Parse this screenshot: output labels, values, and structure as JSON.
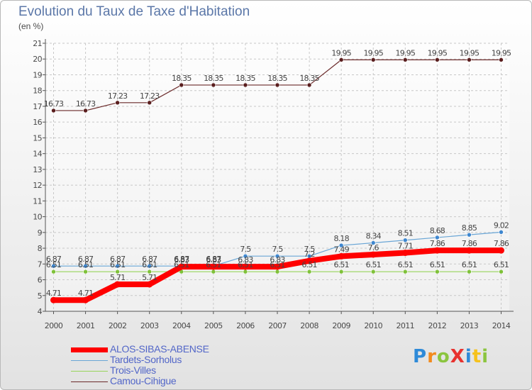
{
  "header": {
    "title": "Evolution du Taux de Taxe d'Habitation",
    "unit": "(en %)"
  },
  "logo": {
    "text": "ProXiti"
  },
  "colors": {
    "background_top": "#ffffff",
    "background_bottom": "#e2e2e2",
    "grid": "#c8c8c8"
  },
  "chart_data": {
    "type": "line",
    "title": "Evolution du Taux de Taxe d'Habitation",
    "subtitle": "(en %)",
    "xlabel": "",
    "ylabel": "",
    "x": [
      "2000",
      "2001",
      "2002",
      "2003",
      "2004",
      "2005",
      "2006",
      "2007",
      "2008",
      "2009",
      "2010",
      "2011",
      "2012",
      "2013",
      "2014"
    ],
    "ylim": [
      4,
      21
    ],
    "yticks": [
      4,
      5,
      6,
      7,
      8,
      9,
      10,
      11,
      12,
      13,
      14,
      15,
      16,
      17,
      18,
      19,
      20,
      21
    ],
    "grid": true,
    "legend_position": "bottom-left",
    "series": [
      {
        "name": "ALOS-SIBAS-ABENSE",
        "color": "#ff0000",
        "values": [
          4.71,
          4.71,
          5.71,
          5.71,
          6.83,
          6.83,
          6.83,
          6.83,
          7.2,
          7.49,
          7.6,
          7.71,
          7.86,
          7.86,
          7.86
        ],
        "labels": [
          "4.71",
          "4.71",
          "5.71",
          "5.71",
          "6.83",
          "6.83",
          "6.83",
          "6.83",
          "7.2",
          "7.49",
          "7.6",
          "7.71",
          "7.86",
          "7.86",
          "7.86"
        ]
      },
      {
        "name": "Tardets-Sorholus",
        "color": "#6aa6d6",
        "values": [
          6.87,
          6.87,
          6.87,
          6.87,
          6.87,
          6.87,
          7.5,
          7.5,
          7.5,
          8.18,
          8.34,
          8.51,
          8.68,
          8.85,
          9.02
        ],
        "labels": [
          "6.87",
          "6.87",
          "6.87",
          "6.87",
          "6.87",
          "6.87",
          "7.5",
          "7.5",
          "7.5",
          "8.18",
          "8.34",
          "8.51",
          "8.68",
          "8.85",
          "9.02"
        ]
      },
      {
        "name": "Trois-Villes",
        "color": "#98d45a",
        "values": [
          6.51,
          6.51,
          6.51,
          6.51,
          6.51,
          6.51,
          6.51,
          6.51,
          6.51,
          6.51,
          6.51,
          6.51,
          6.51,
          6.51,
          6.51
        ],
        "labels": [
          "6.51",
          "6.51",
          "6.51",
          "6.51",
          "6.51",
          "6.51",
          "6.51",
          "6.51",
          "6.51",
          "6.51",
          "6.51",
          "6.51",
          "6.51",
          "6.51",
          "6.51"
        ]
      },
      {
        "name": "Camou-Cihigue",
        "color": "#6b2a2a",
        "values": [
          16.73,
          16.73,
          17.23,
          17.23,
          18.35,
          18.35,
          18.35,
          18.35,
          18.35,
          19.95,
          19.95,
          19.95,
          19.95,
          19.95,
          19.95
        ],
        "labels": [
          "16.73",
          "16.73",
          "17.23",
          "17.23",
          "18.35",
          "18.35",
          "18.35",
          "18.35",
          "18.35",
          "19.95",
          "19.95",
          "19.95",
          "19.95",
          "19.95",
          "19.95"
        ]
      }
    ]
  }
}
